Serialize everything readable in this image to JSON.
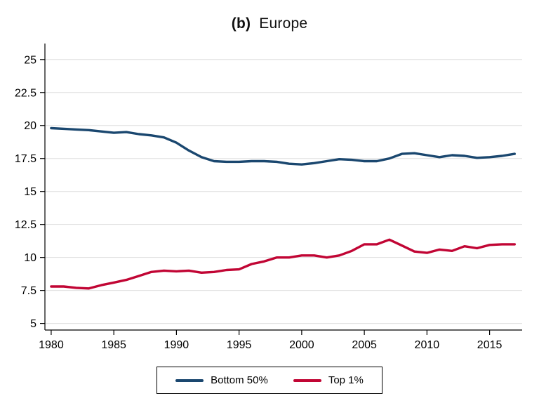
{
  "chart_data": {
    "type": "line",
    "title": "(b) Europe",
    "title_prefix": "(b)",
    "title_text": "Europe",
    "xlabel": "",
    "ylabel": "",
    "xlim": [
      1979.5,
      2017.6
    ],
    "ylim": [
      4.5,
      26.0
    ],
    "xticks": [
      1980,
      1985,
      1990,
      1995,
      2000,
      2005,
      2010,
      2015
    ],
    "yticks": [
      5,
      7.5,
      10,
      12.5,
      15,
      17.5,
      20,
      22.5,
      25
    ],
    "grid": true,
    "grid_color": "#dedede",
    "axis_color": "#000000",
    "legend_position": "bottom",
    "x": [
      1980,
      1981,
      1982,
      1983,
      1984,
      1985,
      1986,
      1987,
      1988,
      1989,
      1990,
      1991,
      1992,
      1993,
      1994,
      1995,
      1996,
      1997,
      1998,
      1999,
      2000,
      2001,
      2002,
      2003,
      2004,
      2005,
      2006,
      2007,
      2008,
      2009,
      2010,
      2011,
      2012,
      2013,
      2014,
      2015,
      2016,
      2017
    ],
    "series": [
      {
        "name": "Bottom 50%",
        "color": "#1a476f",
        "values": [
          19.8,
          19.75,
          19.7,
          19.65,
          19.55,
          19.45,
          19.5,
          19.35,
          19.25,
          19.1,
          18.7,
          18.1,
          17.6,
          17.3,
          17.25,
          17.25,
          17.3,
          17.3,
          17.25,
          17.1,
          17.05,
          17.15,
          17.3,
          17.45,
          17.4,
          17.3,
          17.3,
          17.5,
          17.85,
          17.9,
          17.75,
          17.6,
          17.75,
          17.7,
          17.55,
          17.6,
          17.7,
          17.85
        ]
      },
      {
        "name": "Top 1%",
        "color": "#c10534",
        "values": [
          7.8,
          7.8,
          7.7,
          7.65,
          7.9,
          8.1,
          8.3,
          8.6,
          8.9,
          9.0,
          8.95,
          9.0,
          8.85,
          8.9,
          9.05,
          9.1,
          9.5,
          9.7,
          10.0,
          10.0,
          10.15,
          10.15,
          10.0,
          10.15,
          10.5,
          11.0,
          11.0,
          11.35,
          10.9,
          10.45,
          10.35,
          10.6,
          10.5,
          10.85,
          10.7,
          10.95,
          11.0,
          11.0
        ]
      }
    ]
  }
}
